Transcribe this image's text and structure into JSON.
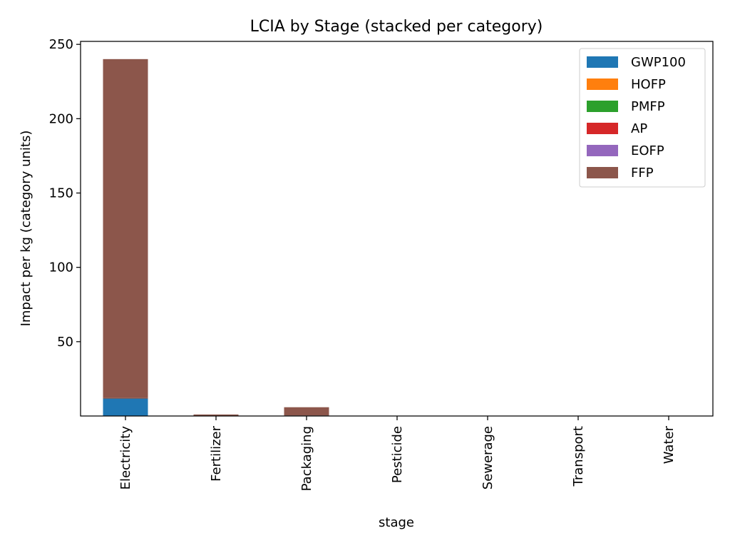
{
  "chart_data": {
    "type": "bar",
    "stacked": true,
    "title": "LCIA by Stage (stacked per category)",
    "xlabel": "stage",
    "ylabel": "Impact per kg (category units)",
    "categories": [
      "Electricity",
      "Fertilizer",
      "Packaging",
      "Pesticide",
      "Sewerage",
      "Transport",
      "Water"
    ],
    "ylim": [
      0,
      252
    ],
    "yticks": [
      50,
      100,
      150,
      200,
      250
    ],
    "legend_position": "top-right",
    "grid": false,
    "series": [
      {
        "name": "GWP100",
        "color": "#1f77b4",
        "values": [
          12.0,
          0.2,
          0.3,
          0.05,
          0.05,
          0.05,
          0.02
        ]
      },
      {
        "name": "HOFP",
        "color": "#ff7f0e",
        "values": [
          0.02,
          0.0,
          0.0,
          0.0,
          0.0,
          0.0,
          0.0
        ]
      },
      {
        "name": "PMFP",
        "color": "#2ca02c",
        "values": [
          0.01,
          0.0,
          0.0,
          0.0,
          0.0,
          0.0,
          0.0
        ]
      },
      {
        "name": "AP",
        "color": "#d62728",
        "values": [
          0.05,
          0.01,
          0.0,
          0.0,
          0.0,
          0.0,
          0.0
        ]
      },
      {
        "name": "EOFP",
        "color": "#9467bd",
        "values": [
          0.0,
          0.0,
          0.0,
          0.0,
          0.0,
          0.0,
          0.0
        ]
      },
      {
        "name": "FFP",
        "color": "#8c564b",
        "values": [
          228.0,
          0.8,
          5.6,
          0.05,
          0.05,
          0.1,
          0.03
        ]
      }
    ]
  }
}
